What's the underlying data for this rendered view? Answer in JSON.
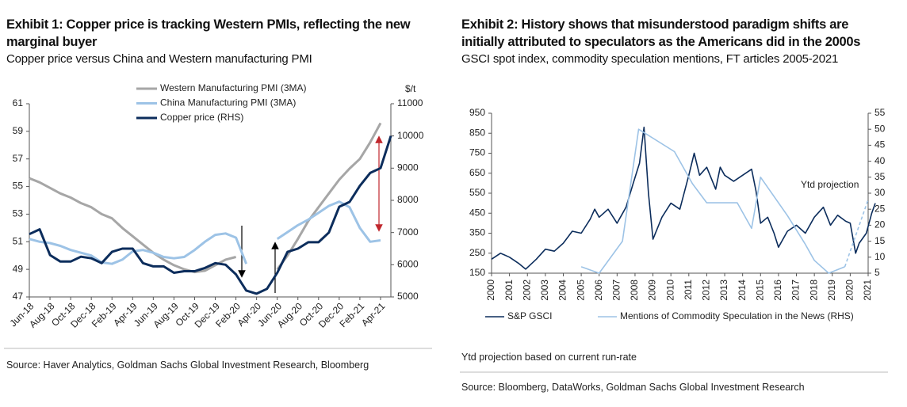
{
  "chart_data": [
    {
      "type": "line",
      "title": "Exhibit 1: Copper price is tracking Western PMIs, reflecting the new marginal buyer",
      "subtitle": "Copper price versus China and Western manufacturing PMI",
      "source": "Source: Haver Analytics, Goldman Sachs Global Investment Research, Bloomberg",
      "y2_label": "$/t",
      "categories": [
        "Jun-18",
        null,
        "Aug-18",
        null,
        "Oct-18",
        null,
        "Dec-18",
        null,
        "Feb-19",
        null,
        "Apr-19",
        null,
        "Jun-19",
        null,
        "Aug-19",
        null,
        "Oct-19",
        null,
        "Dec-19",
        null,
        "Feb-20",
        null,
        "Apr-20",
        null,
        "Jun-20",
        null,
        "Aug-20",
        null,
        "Oct-20",
        null,
        "Dec-20",
        null,
        "Feb-21",
        null,
        "Apr-21",
        null
      ],
      "series": [
        {
          "name": "Western Manufacturing PMI (3MA)",
          "color": "#a6a6a6",
          "values": [
            55.6,
            55.3,
            54.9,
            54.5,
            54.2,
            53.8,
            53.5,
            53.0,
            52.7,
            52.0,
            51.4,
            50.8,
            50.2,
            49.7,
            49.3,
            49.0,
            48.8,
            48.9,
            49.3,
            49.7,
            49.9,
            null,
            null,
            null,
            49.0,
            50.0,
            51.2,
            52.5,
            53.5,
            54.5,
            55.5,
            56.3,
            57.0,
            58.2,
            59.6,
            null
          ]
        },
        {
          "name": "China Manufacturing PMI (3MA)",
          "color": "#9dc3e6",
          "values": [
            51.2,
            51.0,
            50.9,
            50.7,
            50.4,
            50.2,
            50.0,
            49.5,
            49.4,
            49.7,
            50.3,
            50.4,
            50.2,
            49.9,
            49.8,
            49.9,
            50.4,
            51.0,
            51.5,
            51.6,
            51.3,
            49.4,
            null,
            null,
            51.2,
            51.7,
            52.2,
            52.6,
            53.1,
            53.6,
            53.9,
            53.5,
            52.0,
            51.0,
            51.1,
            null
          ]
        },
        {
          "name": "Copper price (RHS)",
          "color": "#0c2d5c",
          "axis": "y2",
          "values": [
            6950,
            7100,
            6300,
            6100,
            6100,
            6250,
            6200,
            6050,
            6400,
            6500,
            6500,
            6050,
            5950,
            5950,
            5750,
            5800,
            5800,
            5900,
            6050,
            6000,
            5700,
            5200,
            5100,
            5250,
            5750,
            6400,
            6500,
            6700,
            6700,
            7000,
            7800,
            7950,
            8450,
            8850,
            9000,
            10000
          ]
        }
      ],
      "ylim": [
        47,
        61
      ],
      "yticks": [
        47,
        49,
        51,
        53,
        55,
        57,
        59,
        61
      ],
      "y2lim": [
        5000,
        11000
      ],
      "y2ticks": [
        5000,
        6000,
        7000,
        8000,
        9000,
        10000,
        11000
      ],
      "legend": "top-left"
    },
    {
      "type": "line",
      "title": "Exhibit 2: History shows that misunderstood paradigm shifts are initially attributed to speculators as the Americans did in the 2000s",
      "subtitle": "GSCI spot index, commodity speculation mentions, FT articles 2005-2021",
      "annotation": "Ytd projection",
      "note": "Ytd projection based on current run-rate",
      "source": "Source: Bloomberg, DataWorks, Goldman Sachs Global Investment Research",
      "series": [
        {
          "name": "S&P GSCI",
          "color": "#0c2d5c",
          "x": [
            2000,
            2000.5,
            2001,
            2001.5,
            2001.9,
            2002.5,
            2003,
            2003.5,
            2004,
            2004.5,
            2005,
            2005.5,
            2005.75,
            2006,
            2006.5,
            2007,
            2007.5,
            2007.9,
            2008.25,
            2008.5,
            2008.75,
            2009,
            2009.5,
            2010,
            2010.5,
            2011,
            2011.3,
            2011.6,
            2012,
            2012.5,
            2012.75,
            2013,
            2013.5,
            2014,
            2014.5,
            2014.75,
            2015,
            2015.4,
            2015.75,
            2016,
            2016.5,
            2017,
            2017.5,
            2018,
            2018.5,
            2018.9,
            2019.3,
            2019.75,
            2020,
            2020.3,
            2020.5,
            2020.9,
            2021.2,
            2021.4
          ],
          "values": [
            220,
            250,
            230,
            200,
            170,
            220,
            270,
            260,
            300,
            360,
            350,
            420,
            470,
            430,
            470,
            400,
            480,
            600,
            700,
            880,
            550,
            320,
            430,
            500,
            470,
            640,
            750,
            640,
            680,
            570,
            680,
            640,
            610,
            640,
            670,
            560,
            400,
            430,
            350,
            280,
            360,
            390,
            350,
            430,
            480,
            390,
            440,
            410,
            400,
            250,
            300,
            350,
            450,
            500
          ]
        },
        {
          "name": "Mentions of Commodity Speculation in the News (RHS)",
          "color": "#9dc3e6",
          "axis": "y2",
          "x": [
            2005,
            2006,
            2007.3,
            2008.2,
            2010.2,
            2011.2,
            2012,
            2013.7,
            2014.5,
            2015,
            2016.5,
            2017.5,
            2018,
            2018.8,
            2019.7
          ],
          "values": [
            7,
            5,
            15,
            50,
            43,
            33,
            27,
            27,
            19,
            35,
            23,
            14,
            9,
            5,
            7
          ]
        }
      ],
      "projection": {
        "x": [
          2019.7,
          2021
        ],
        "values": [
          7,
          28
        ],
        "color": "#9dc3e6"
      },
      "xlim": [
        2000,
        2021
      ],
      "xticks": [
        2000,
        2001,
        2002,
        2003,
        2004,
        2005,
        2006,
        2007,
        2008,
        2009,
        2010,
        2011,
        2012,
        2013,
        2014,
        2015,
        2016,
        2017,
        2018,
        2019,
        2020,
        2021
      ],
      "ylim": [
        150,
        950
      ],
      "yticks": [
        150,
        250,
        350,
        450,
        550,
        650,
        750,
        850,
        950
      ],
      "y2lim": [
        5,
        55
      ],
      "y2ticks": [
        5,
        10,
        15,
        20,
        25,
        30,
        35,
        40,
        45,
        50,
        55
      ],
      "legend": "bottom"
    }
  ]
}
